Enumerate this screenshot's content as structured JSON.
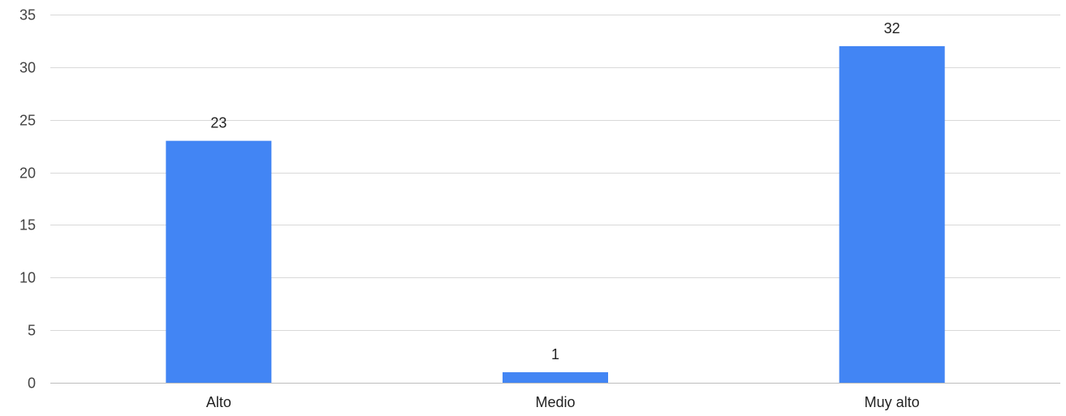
{
  "chart_data": {
    "type": "bar",
    "categories": [
      "Alto",
      "Medio",
      "Muy alto"
    ],
    "values": [
      23,
      1,
      32
    ],
    "title": "",
    "xlabel": "",
    "ylabel": "",
    "ylim": [
      0,
      35
    ],
    "yticks": [
      0,
      5,
      10,
      15,
      20,
      25,
      30,
      35
    ],
    "grid": true,
    "legend": "none",
    "bar_color": "#4285f4",
    "show_data_labels": true
  }
}
